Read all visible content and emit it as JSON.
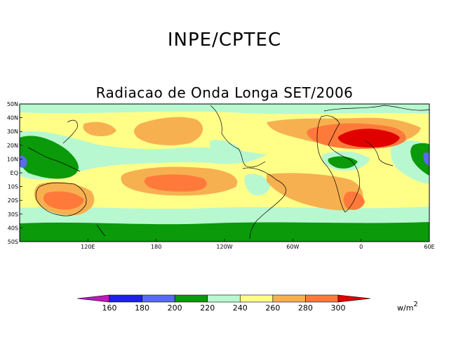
{
  "header": {
    "org": "INPE/CPTEC",
    "title": "Radiacao de Onda Longa SET/2006"
  },
  "map": {
    "lat_labels": [
      "50N",
      "40N",
      "30N",
      "20N",
      "10N",
      "EQ",
      "10S",
      "20S",
      "30S",
      "40S",
      "50S"
    ],
    "lon_labels": [
      "120E",
      "180",
      "120W",
      "60W",
      "0",
      "60E"
    ]
  },
  "colorbar": {
    "levels": [
      "160",
      "180",
      "200",
      "220",
      "240",
      "260",
      "280",
      "300"
    ],
    "colors": [
      "#c018c0",
      "#1e22e6",
      "#5a6af2",
      "#0a9a0a",
      "#b8f8d0",
      "#ffff88",
      "#f7b050",
      "#ff7a3a",
      "#e00000"
    ],
    "units": "w/m",
    "units_exp": "2"
  }
}
